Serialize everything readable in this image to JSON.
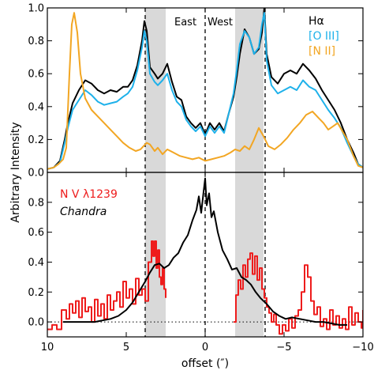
{
  "chart_data": {
    "type": "line",
    "xlabel": "offset (″)",
    "ylabel": "Arbitrary Intensity",
    "xlim": [
      10,
      -10
    ],
    "x_ticks": [
      10,
      5,
      0,
      -5,
      -10
    ],
    "x_tick_labels": [
      "10",
      "5",
      "0",
      "−5",
      "−10"
    ],
    "shaded_bands": [
      [
        2.5,
        3.8
      ],
      [
        -1.9,
        -3.7
      ]
    ],
    "vertical_dashed_lines": [
      3.8,
      0,
      -3.8
    ],
    "direction_labels": {
      "east": "East",
      "west": "West"
    },
    "panels": [
      {
        "ylim": [
          0,
          1.0
        ],
        "y_ticks": [
          0.0,
          0.2,
          0.4,
          0.6,
          0.8,
          1.0
        ],
        "y_tick_labels": [
          "0.0",
          "0.2",
          "0.4",
          "0.6",
          "0.8",
          "1.0"
        ],
        "legend_placement": "top-right",
        "series": [
          {
            "name": "Hα",
            "color": "#000000",
            "x": [
              10,
              9.6,
              9.2,
              8.9,
              8.7,
              8.4,
              8.0,
              7.6,
              7.2,
              6.8,
              6.4,
              6.0,
              5.6,
              5.2,
              4.9,
              4.6,
              4.3,
              4.0,
              3.85,
              3.7,
              3.5,
              3.2,
              3.0,
              2.7,
              2.4,
              2.1,
              1.8,
              1.5,
              1.2,
              0.9,
              0.6,
              0.3,
              0.0,
              -0.3,
              -0.6,
              -0.9,
              -1.2,
              -1.5,
              -1.8,
              -2.0,
              -2.2,
              -2.5,
              -2.8,
              -3.1,
              -3.4,
              -3.6,
              -3.75,
              -3.9,
              -4.2,
              -4.6,
              -5.0,
              -5.4,
              -5.8,
              -6.2,
              -6.6,
              -7.0,
              -7.4,
              -7.8,
              -8.2,
              -8.6,
              -9.0,
              -9.4,
              -9.7,
              -10
            ],
            "y": [
              0.02,
              0.03,
              0.07,
              0.2,
              0.3,
              0.42,
              0.5,
              0.56,
              0.54,
              0.5,
              0.48,
              0.5,
              0.49,
              0.52,
              0.52,
              0.56,
              0.65,
              0.8,
              0.92,
              0.86,
              0.64,
              0.6,
              0.57,
              0.6,
              0.66,
              0.55,
              0.46,
              0.44,
              0.34,
              0.3,
              0.27,
              0.3,
              0.23,
              0.3,
              0.26,
              0.3,
              0.25,
              0.36,
              0.46,
              0.58,
              0.72,
              0.87,
              0.82,
              0.72,
              0.75,
              0.85,
              1.0,
              0.72,
              0.58,
              0.54,
              0.6,
              0.62,
              0.6,
              0.66,
              0.62,
              0.57,
              0.5,
              0.44,
              0.38,
              0.3,
              0.2,
              0.12,
              0.05,
              0.03
            ]
          },
          {
            "name": "[O III]",
            "color": "#1eb1ea",
            "x": [
              10,
              9.6,
              9.2,
              8.9,
              8.7,
              8.4,
              8.0,
              7.6,
              7.2,
              6.8,
              6.4,
              6.0,
              5.6,
              5.2,
              4.9,
              4.6,
              4.3,
              4.0,
              3.85,
              3.7,
              3.5,
              3.2,
              3.0,
              2.7,
              2.4,
              2.1,
              1.8,
              1.5,
              1.2,
              0.9,
              0.6,
              0.3,
              0.0,
              -0.3,
              -0.6,
              -0.9,
              -1.2,
              -1.5,
              -1.8,
              -2.0,
              -2.2,
              -2.5,
              -2.8,
              -3.1,
              -3.4,
              -3.6,
              -3.75,
              -3.9,
              -4.2,
              -4.6,
              -5.0,
              -5.4,
              -5.8,
              -6.2,
              -6.6,
              -7.0,
              -7.4,
              -7.8,
              -8.2,
              -8.6,
              -9.0,
              -9.4,
              -9.7,
              -10
            ],
            "y": [
              0.02,
              0.03,
              0.06,
              0.18,
              0.27,
              0.38,
              0.44,
              0.5,
              0.47,
              0.43,
              0.41,
              0.42,
              0.43,
              0.46,
              0.48,
              0.52,
              0.62,
              0.76,
              0.86,
              0.8,
              0.6,
              0.55,
              0.53,
              0.56,
              0.6,
              0.5,
              0.43,
              0.4,
              0.32,
              0.28,
              0.25,
              0.28,
              0.22,
              0.28,
              0.24,
              0.28,
              0.24,
              0.36,
              0.48,
              0.62,
              0.78,
              0.86,
              0.82,
              0.72,
              0.76,
              0.9,
              0.97,
              0.68,
              0.53,
              0.48,
              0.5,
              0.52,
              0.5,
              0.56,
              0.52,
              0.5,
              0.44,
              0.38,
              0.33,
              0.27,
              0.18,
              0.1,
              0.05,
              0.03
            ]
          },
          {
            "name": "[N II]",
            "color": "#f2a623",
            "x": [
              10,
              9.6,
              9.3,
              9.0,
              8.8,
              8.6,
              8.45,
              8.3,
              8.1,
              7.9,
              7.6,
              7.2,
              6.8,
              6.4,
              6.0,
              5.6,
              5.2,
              4.8,
              4.4,
              4.1,
              3.9,
              3.7,
              3.5,
              3.2,
              3.0,
              2.7,
              2.4,
              2.0,
              1.6,
              1.2,
              0.8,
              0.4,
              0.0,
              -0.4,
              -0.8,
              -1.2,
              -1.6,
              -1.9,
              -2.2,
              -2.5,
              -2.8,
              -3.1,
              -3.4,
              -3.7,
              -4.0,
              -4.4,
              -4.8,
              -5.2,
              -5.6,
              -6.0,
              -6.4,
              -6.8,
              -7.2,
              -7.5,
              -7.8,
              -8.1,
              -8.4,
              -8.7,
              -9.0,
              -9.4,
              -9.7,
              -10
            ],
            "y": [
              0.02,
              0.03,
              0.05,
              0.08,
              0.15,
              0.6,
              0.9,
              0.97,
              0.85,
              0.6,
              0.45,
              0.38,
              0.34,
              0.3,
              0.26,
              0.22,
              0.18,
              0.15,
              0.13,
              0.14,
              0.16,
              0.18,
              0.17,
              0.13,
              0.15,
              0.11,
              0.14,
              0.12,
              0.1,
              0.09,
              0.08,
              0.09,
              0.07,
              0.08,
              0.09,
              0.1,
              0.12,
              0.14,
              0.13,
              0.16,
              0.14,
              0.2,
              0.27,
              0.22,
              0.16,
              0.14,
              0.17,
              0.21,
              0.26,
              0.3,
              0.35,
              0.37,
              0.33,
              0.3,
              0.26,
              0.28,
              0.3,
              0.25,
              0.2,
              0.1,
              0.04,
              0.03
            ]
          }
        ]
      },
      {
        "ylim": [
          -0.1,
          1.0
        ],
        "y_ticks": [
          0.0,
          0.2,
          0.4,
          0.6,
          0.8
        ],
        "y_tick_labels": [
          "0.0",
          "0.2",
          "0.4",
          "0.6",
          "0.8"
        ],
        "legend_placement": "top-left",
        "zero_reference": {
          "y": 0.0,
          "style": "dotted"
        },
        "series": [
          {
            "name": "N V λ1239",
            "color": "#ee1c1c",
            "step": true,
            "segments": [
              {
                "x": [
                  10,
                  9.7,
                  9.4,
                  9.1,
                  8.8,
                  8.6,
                  8.4,
                  8.2,
                  8.0,
                  7.8,
                  7.6,
                  7.4,
                  7.2,
                  7.0,
                  6.8,
                  6.6,
                  6.4,
                  6.2,
                  6.0,
                  5.8,
                  5.6,
                  5.4,
                  5.2,
                  5.0,
                  4.8,
                  4.6,
                  4.4,
                  4.2,
                  4.0,
                  3.8,
                  3.6,
                  3.4,
                  3.3,
                  3.2,
                  3.1,
                  3.0,
                  2.9,
                  2.8,
                  2.7,
                  2.6,
                  2.5
                ],
                "y": [
                  -0.05,
                  -0.02,
                  -0.05,
                  0.08,
                  0.02,
                  0.12,
                  0.06,
                  0.14,
                  0.03,
                  0.16,
                  0.07,
                  0.1,
                  0.0,
                  0.15,
                  0.04,
                  0.12,
                  0.02,
                  0.18,
                  0.08,
                  0.14,
                  0.2,
                  0.1,
                  0.27,
                  0.16,
                  0.22,
                  0.12,
                  0.29,
                  0.18,
                  0.22,
                  0.14,
                  0.4,
                  0.54,
                  0.44,
                  0.54,
                  0.36,
                  0.48,
                  0.3,
                  0.25,
                  0.36,
                  0.22,
                  0.16
                ]
              },
              {
                "x": [
                  -1.8,
                  -1.95,
                  -2.1,
                  -2.25,
                  -2.4,
                  -2.55,
                  -2.7,
                  -2.85,
                  -3.0,
                  -3.15,
                  -3.3,
                  -3.45,
                  -3.6,
                  -3.75,
                  -3.9,
                  -4.05,
                  -4.2,
                  -4.35,
                  -4.5,
                  -4.7,
                  -4.9,
                  -5.1,
                  -5.3,
                  -5.5,
                  -5.7,
                  -5.9,
                  -6.1,
                  -6.3,
                  -6.5,
                  -6.7,
                  -6.9,
                  -7.1,
                  -7.3,
                  -7.5,
                  -7.7,
                  -7.9,
                  -8.1,
                  -8.3,
                  -8.5,
                  -8.7,
                  -8.9,
                  -9.1,
                  -9.3,
                  -9.5,
                  -9.7,
                  -9.9,
                  -10
                ],
                "y": [
                  0.0,
                  0.18,
                  0.28,
                  0.22,
                  0.38,
                  0.3,
                  0.42,
                  0.46,
                  0.32,
                  0.44,
                  0.28,
                  0.36,
                  0.22,
                  0.16,
                  0.1,
                  0.06,
                  0.0,
                  0.05,
                  -0.02,
                  -0.08,
                  -0.02,
                  -0.06,
                  0.02,
                  -0.04,
                  0.04,
                  0.08,
                  0.2,
                  0.38,
                  0.3,
                  0.14,
                  0.05,
                  0.1,
                  -0.03,
                  0.02,
                  -0.05,
                  0.08,
                  -0.02,
                  0.04,
                  -0.04,
                  0.02,
                  -0.05,
                  0.1,
                  -0.02,
                  0.06,
                  0.0,
                  -0.04,
                  0.08
                ]
              }
            ]
          },
          {
            "name": "Chandra",
            "color": "#000000",
            "x": [
              9.0,
              8.0,
              7.0,
              6.5,
              6.0,
              5.5,
              5.0,
              4.6,
              4.2,
              3.8,
              3.5,
              3.2,
              2.9,
              2.6,
              2.3,
              2.0,
              1.7,
              1.4,
              1.1,
              0.8,
              0.55,
              0.4,
              0.25,
              0.1,
              0.0,
              -0.1,
              -0.25,
              -0.4,
              -0.55,
              -0.8,
              -1.1,
              -1.4,
              -1.7,
              -2.0,
              -2.3,
              -2.6,
              -2.9,
              -3.2,
              -3.5,
              -3.9,
              -4.3,
              -4.7,
              -5.1,
              -5.5,
              -6.0,
              -6.5,
              -7.0,
              -7.5,
              -8.0,
              -8.5,
              -9.0
            ],
            "y": [
              0.0,
              0.0,
              0.0,
              0.01,
              0.02,
              0.04,
              0.08,
              0.13,
              0.2,
              0.27,
              0.33,
              0.38,
              0.39,
              0.36,
              0.38,
              0.43,
              0.46,
              0.53,
              0.58,
              0.68,
              0.75,
              0.84,
              0.73,
              0.87,
              0.96,
              0.78,
              0.86,
              0.7,
              0.74,
              0.6,
              0.48,
              0.42,
              0.35,
              0.36,
              0.3,
              0.28,
              0.25,
              0.2,
              0.16,
              0.12,
              0.07,
              0.04,
              0.02,
              0.03,
              0.02,
              0.01,
              0.0,
              0.0,
              -0.01,
              -0.02,
              -0.02
            ]
          }
        ]
      }
    ]
  }
}
